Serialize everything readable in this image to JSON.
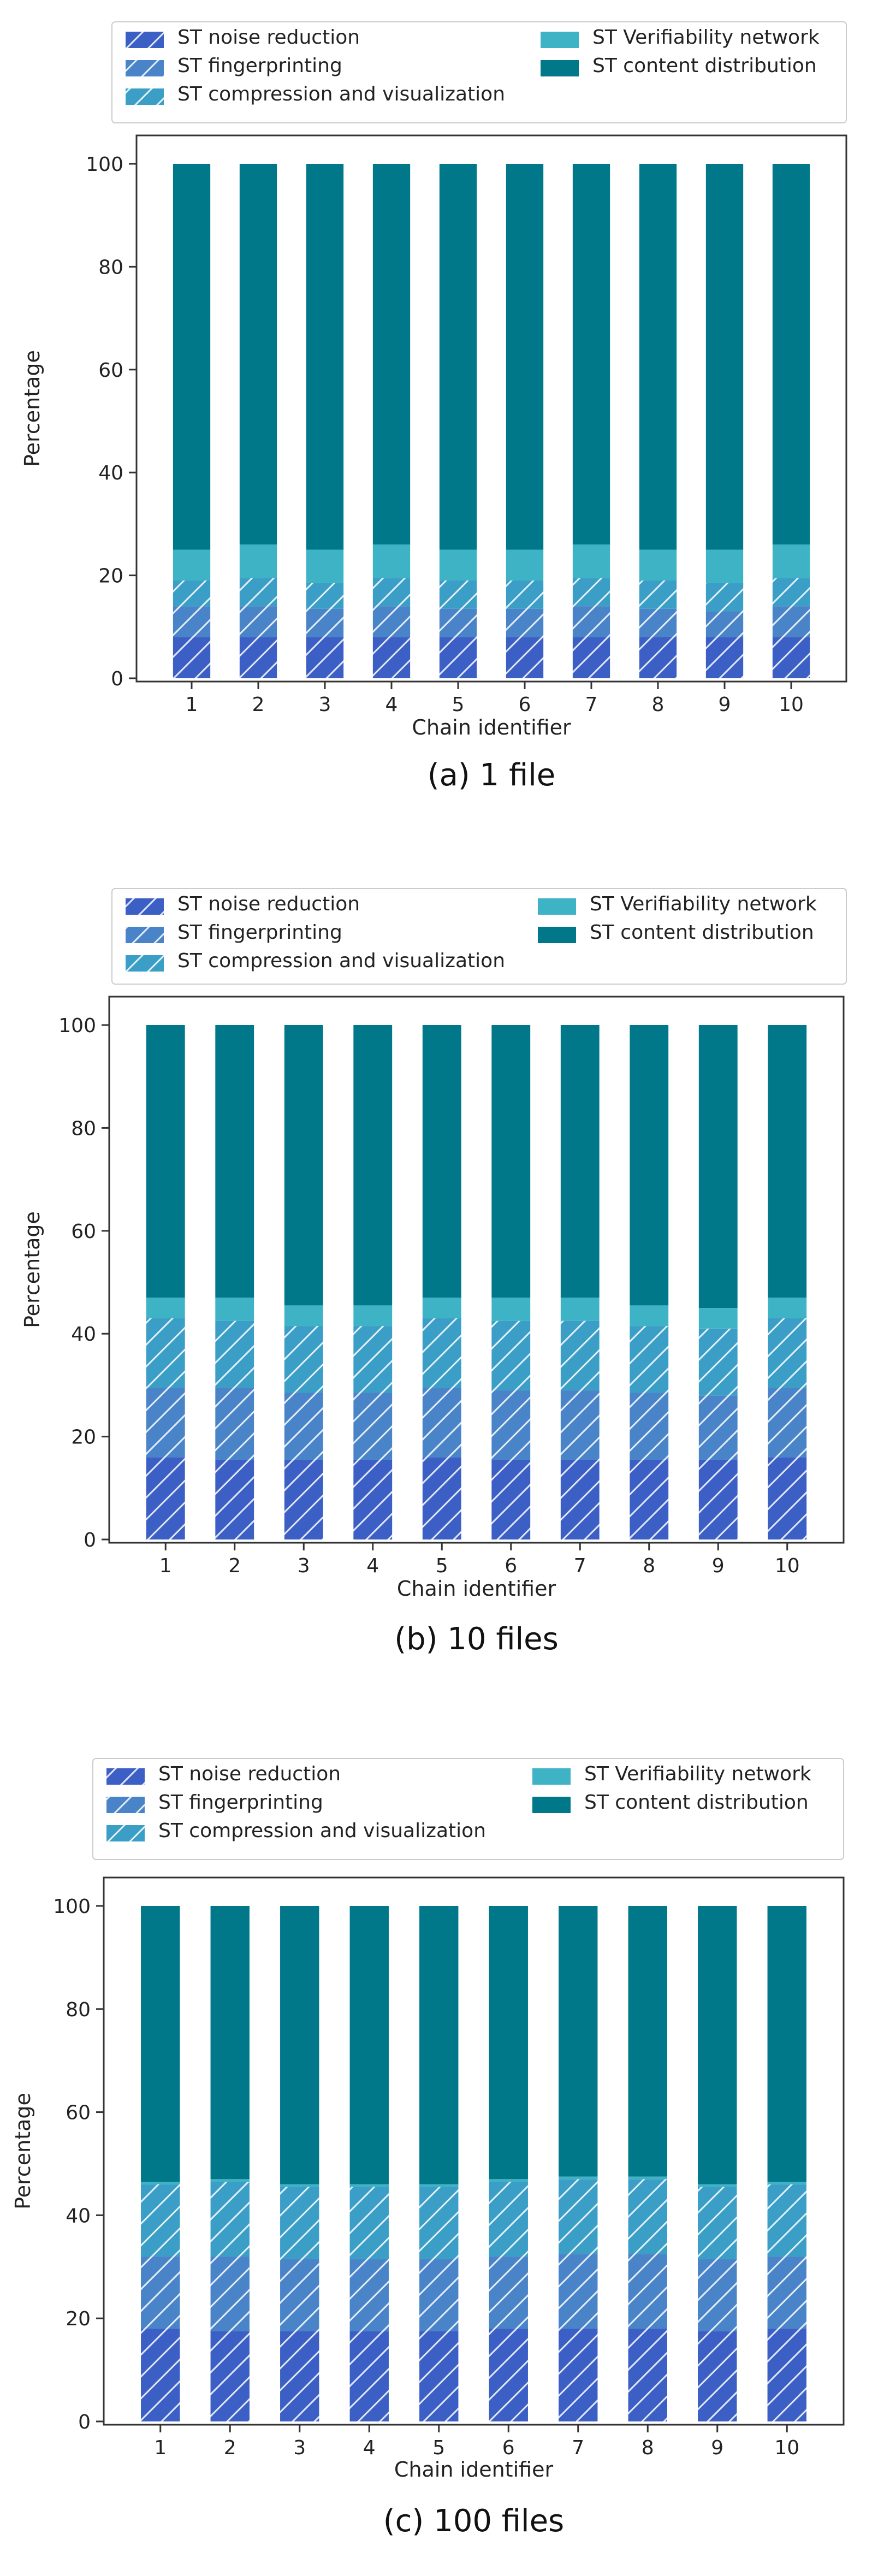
{
  "legend_labels": {
    "noise": "ST noise reduction",
    "fingerprinting": "ST fingerprinting",
    "compression": "ST compression and visualization",
    "verifiability": "ST Verifiability network",
    "distribution": "ST content distribution"
  },
  "colors": {
    "noise": "#3b5fc4",
    "fingerprinting": "#4a84c8",
    "compression": "#3a9ec6",
    "verifiability": "#3fb3c6",
    "distribution": "#00788a"
  },
  "chart_data": [
    {
      "type": "bar",
      "stacked": true,
      "caption": "(a) 1 file",
      "xlabel": "Chain identifier",
      "ylabel": "Percentage",
      "ylim": [
        0,
        100
      ],
      "yticks": [
        0,
        20,
        40,
        60,
        80,
        100
      ],
      "categories": [
        "1",
        "2",
        "3",
        "4",
        "5",
        "6",
        "7",
        "8",
        "9",
        "10"
      ],
      "legend_position": "top",
      "series": [
        {
          "name": "ST noise reduction",
          "key": "noise",
          "hatched": true,
          "values": [
            8,
            8,
            8,
            8,
            8,
            8,
            8,
            8,
            8,
            8
          ]
        },
        {
          "name": "ST fingerprinting",
          "key": "fingerprinting",
          "hatched": true,
          "values": [
            6,
            6,
            5.5,
            6,
            5.5,
            5.5,
            6,
            5.5,
            5,
            6
          ]
        },
        {
          "name": "ST compression and visualization",
          "key": "compression",
          "hatched": true,
          "values": [
            5,
            5.5,
            5,
            5.5,
            5.5,
            5.5,
            5.5,
            5.5,
            5.5,
            5.5
          ]
        },
        {
          "name": "ST Verifiability network",
          "key": "verifiability",
          "hatched": false,
          "values": [
            6,
            6.5,
            6.5,
            6.5,
            6,
            6,
            6.5,
            6,
            6.5,
            6.5
          ]
        },
        {
          "name": "ST content distribution",
          "key": "distribution",
          "hatched": false,
          "values": [
            75,
            74,
            75,
            74,
            75,
            75,
            74,
            75,
            75,
            74
          ]
        }
      ]
    },
    {
      "type": "bar",
      "stacked": true,
      "caption": "(b) 10 files",
      "xlabel": "Chain identifier",
      "ylabel": "Percentage",
      "ylim": [
        0,
        100
      ],
      "yticks": [
        0,
        20,
        40,
        60,
        80,
        100
      ],
      "categories": [
        "1",
        "2",
        "3",
        "4",
        "5",
        "6",
        "7",
        "8",
        "9",
        "10"
      ],
      "legend_position": "top",
      "series": [
        {
          "name": "ST noise reduction",
          "key": "noise",
          "hatched": true,
          "values": [
            16,
            15.5,
            15.5,
            15.5,
            16,
            15.5,
            15.5,
            15.5,
            15.5,
            16
          ]
        },
        {
          "name": "ST fingerprinting",
          "key": "fingerprinting",
          "hatched": true,
          "values": [
            13.5,
            14,
            13,
            13,
            13.5,
            13.5,
            13.5,
            13,
            12.5,
            13.5
          ]
        },
        {
          "name": "ST compression and visualization",
          "key": "compression",
          "hatched": true,
          "values": [
            13.5,
            13,
            13,
            13,
            13.5,
            13.5,
            13.5,
            13,
            13,
            13.5
          ]
        },
        {
          "name": "ST Verifiability network",
          "key": "verifiability",
          "hatched": false,
          "values": [
            4,
            4.5,
            4,
            4,
            4,
            4.5,
            4.5,
            4,
            4,
            4
          ]
        },
        {
          "name": "ST content distribution",
          "key": "distribution",
          "hatched": false,
          "values": [
            53,
            53,
            54.5,
            54.5,
            53,
            53,
            53,
            54.5,
            55,
            53
          ]
        }
      ]
    },
    {
      "type": "bar",
      "stacked": true,
      "caption": "(c) 100 files",
      "xlabel": "Chain identifier",
      "ylabel": "Percentage",
      "ylim": [
        0,
        100
      ],
      "yticks": [
        0,
        20,
        40,
        60,
        80,
        100
      ],
      "categories": [
        "1",
        "2",
        "3",
        "4",
        "5",
        "6",
        "7",
        "8",
        "9",
        "10"
      ],
      "legend_position": "top",
      "series": [
        {
          "name": "ST noise reduction",
          "key": "noise",
          "hatched": true,
          "values": [
            18,
            17.5,
            17.5,
            17.5,
            17.5,
            18,
            18,
            18,
            17.5,
            18
          ]
        },
        {
          "name": "ST fingerprinting",
          "key": "fingerprinting",
          "hatched": true,
          "values": [
            14,
            14.5,
            14,
            14,
            14,
            14,
            14.5,
            14.5,
            14,
            14
          ]
        },
        {
          "name": "ST compression and visualization",
          "key": "compression",
          "hatched": true,
          "values": [
            14,
            14.5,
            14,
            14,
            14,
            14.5,
            14.5,
            14.5,
            14,
            14
          ]
        },
        {
          "name": "ST Verifiability network",
          "key": "verifiability",
          "hatched": false,
          "values": [
            0.5,
            0.5,
            0.5,
            0.5,
            0.5,
            0.5,
            0.5,
            0.5,
            0.5,
            0.5
          ]
        },
        {
          "name": "ST content distribution",
          "key": "distribution",
          "hatched": false,
          "values": [
            53.5,
            53,
            54,
            54,
            54,
            53,
            52.5,
            52.5,
            54,
            53.5
          ]
        }
      ]
    }
  ]
}
